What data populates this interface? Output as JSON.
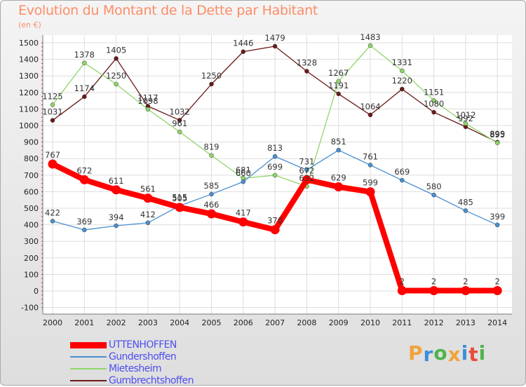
{
  "title": "Evolution du Montant de la Dette par Habitant",
  "unit_label": "(en €)",
  "logo": {
    "letters": [
      "P",
      "r",
      "o",
      "x",
      "i",
      "t",
      "i"
    ],
    "colors": [
      "#f2a33a",
      "#3b8fd9",
      "#4fb34a",
      "#f2a33a",
      "#3b8fd9",
      "#e84b3c",
      "#4fb34a"
    ]
  },
  "chart_data": {
    "type": "line",
    "x": [
      "2000",
      "2001",
      "2002",
      "2003",
      "2004",
      "2005",
      "2006",
      "2007",
      "2008",
      "2009",
      "2010",
      "2011",
      "2012",
      "2013",
      "2014"
    ],
    "yticks": [
      "1500",
      "1400",
      "1300",
      "1200",
      "1100",
      "1000",
      "900",
      "800",
      "700",
      "600",
      "500",
      "400",
      "300",
      "200",
      "100",
      "0",
      "-100"
    ],
    "ylim": [
      -100,
      1500
    ],
    "grid": true,
    "legend_position": "bottom-left",
    "series": [
      {
        "name": "UTTENHOFFEN",
        "color": "#ff0000",
        "values": [
          767,
          672,
          611,
          561,
          505,
          466,
          417,
          370,
          672,
          629,
          599,
          2,
          2,
          2,
          2
        ],
        "labels": [
          "767",
          "672",
          "611",
          "561",
          "505",
          "466",
          "417",
          "370",
          "672",
          "629",
          "599",
          "2",
          "2",
          "2",
          "2"
        ]
      },
      {
        "name": "Gundershoffen",
        "color": "#4a8fd0",
        "values": [
          422,
          369,
          394,
          412,
          515,
          585,
          660,
          813,
          731,
          851,
          761,
          669,
          580,
          485,
          399
        ],
        "labels": [
          "422",
          "369",
          "394",
          "412",
          "515",
          "585",
          "660",
          "813",
          "731",
          "851",
          "761",
          "669",
          "580",
          "485",
          "399"
        ]
      },
      {
        "name": "Mietesheim",
        "color": "#8fd66a",
        "values": [
          1125,
          1378,
          1250,
          1098,
          961,
          819,
          681,
          699,
          632,
          1267,
          1483,
          1331,
          1151,
          1012,
          895
        ],
        "labels": [
          "1125",
          "1378",
          "1250",
          "1098",
          "961",
          "819",
          "681",
          "699",
          "632",
          "1267",
          "1483",
          "1331",
          "1151",
          "1012",
          "895"
        ]
      },
      {
        "name": "Gumbrechtshoffen",
        "color": "#6b1a1a",
        "values": [
          1031,
          1174,
          1405,
          1117,
          1032,
          1250,
          1446,
          1479,
          1328,
          1191,
          1064,
          1220,
          1080,
          992,
          899
        ],
        "labels": [
          "1031",
          "1174",
          "1405",
          "1117",
          "1032",
          "1250",
          "1446",
          "1479",
          "1328",
          "1191",
          "1064",
          "1220",
          "1080",
          "992",
          "899"
        ]
      }
    ]
  }
}
